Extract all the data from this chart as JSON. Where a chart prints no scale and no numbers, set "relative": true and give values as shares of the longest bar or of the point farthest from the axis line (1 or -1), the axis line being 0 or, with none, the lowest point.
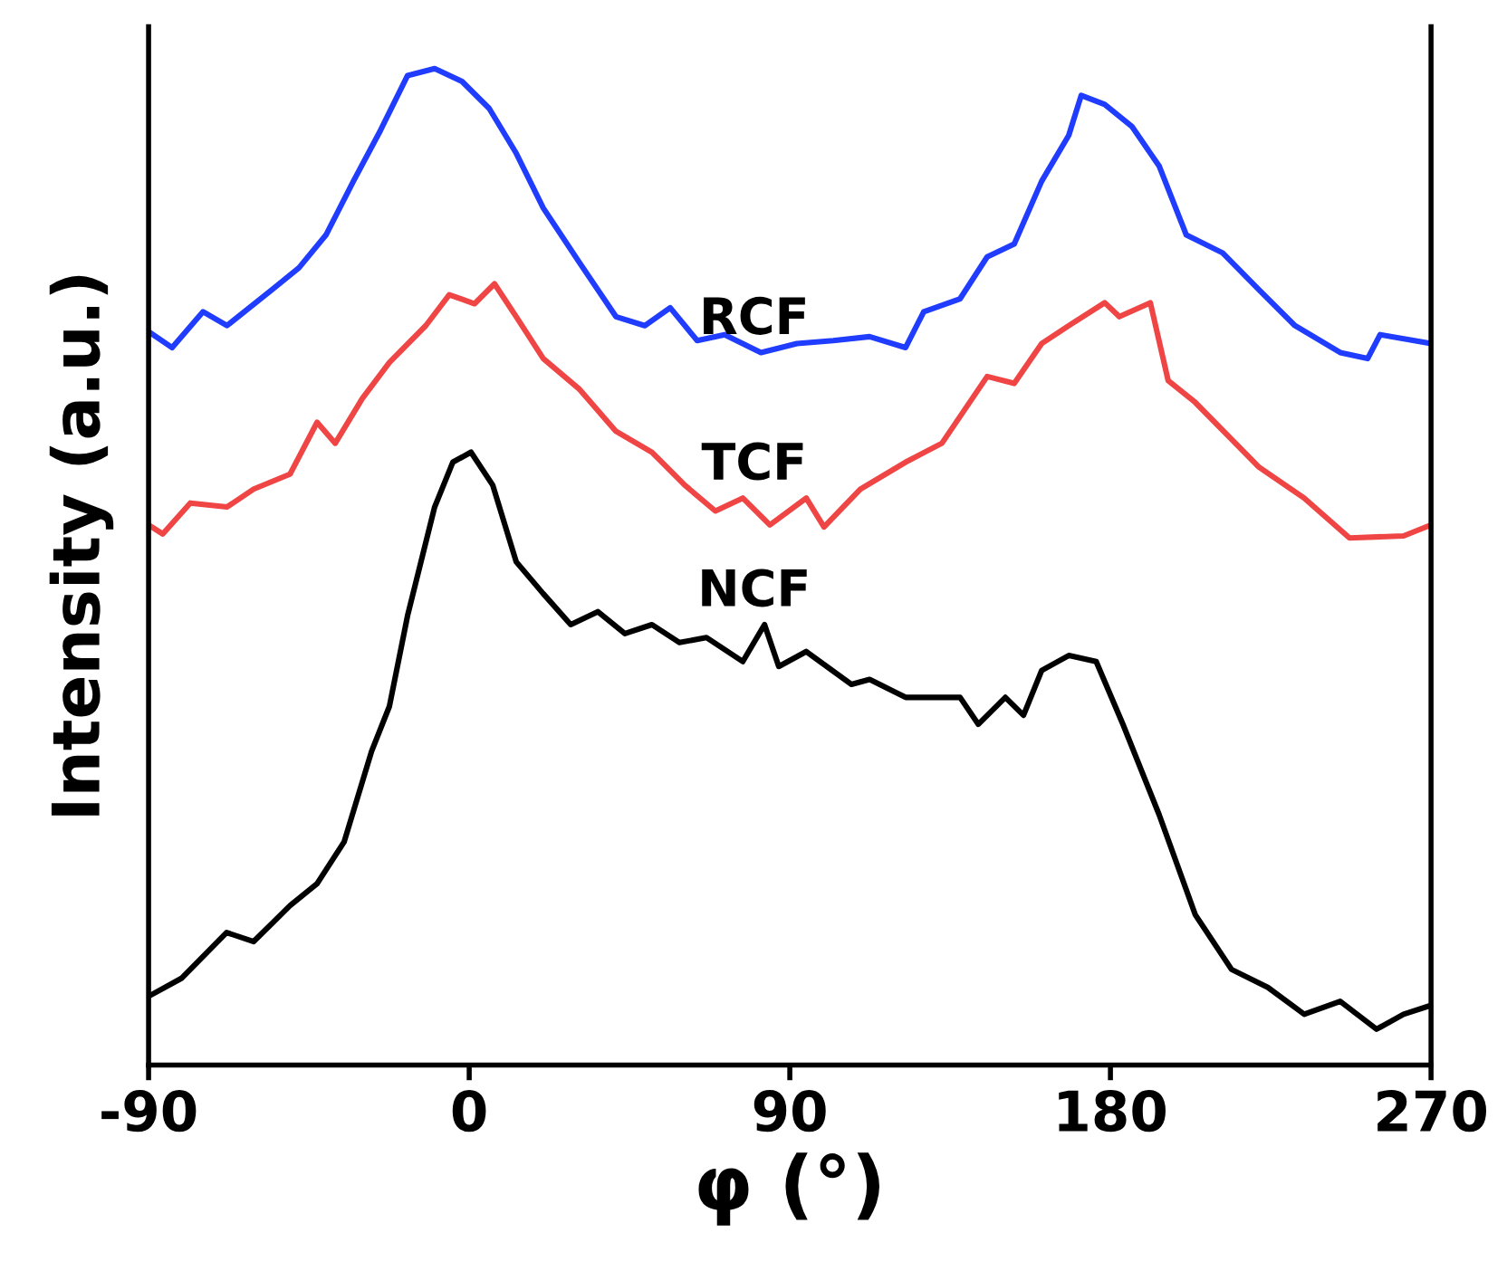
{
  "chart_data": {
    "type": "line",
    "relative": true,
    "xlabel": "φ (°)",
    "ylabel": "Intensity (a.u.)",
    "xlim": [
      -90,
      270
    ],
    "xticks": [
      -90,
      0,
      90,
      180,
      270
    ],
    "tick_labels": "x",
    "grid": false,
    "legend": false,
    "marker": "none",
    "line_style": "solid",
    "series": [
      {
        "name": "RCF",
        "color": "#1f3cff",
        "x": [
          -90,
          -83.4,
          -74.7,
          -68,
          -55.4,
          -47.8,
          -40.2,
          -32.5,
          -24.9,
          -17.3,
          -9.7,
          -2,
          5.6,
          13.2,
          20.8,
          31,
          41.2,
          49.3,
          56.4,
          64,
          71.7,
          81.9,
          92,
          102.2,
          112.4,
          122.5,
          127.6,
          137.8,
          145.4,
          153,
          160.7,
          168.3,
          171.8,
          178.4,
          186,
          193.7,
          201.3,
          211.5,
          221.7,
          231.8,
          244.5,
          252.2,
          255.7,
          270
        ],
        "values": [
          0.736,
          0.72,
          0.756,
          0.742,
          0.778,
          0.8,
          0.833,
          0.887,
          0.938,
          0.993,
          1.0,
          0.987,
          0.96,
          0.915,
          0.86,
          0.805,
          0.751,
          0.742,
          0.76,
          0.727,
          0.733,
          0.715,
          0.724,
          0.727,
          0.731,
          0.72,
          0.756,
          0.769,
          0.811,
          0.824,
          0.887,
          0.933,
          0.973,
          0.964,
          0.942,
          0.902,
          0.833,
          0.815,
          0.778,
          0.742,
          0.715,
          0.709,
          0.733,
          0.724
        ]
      },
      {
        "name": "TCF",
        "color": "#f04545",
        "x": [
          -90,
          -86,
          -78.3,
          -68,
          -60.5,
          -50.3,
          -42.7,
          -37.6,
          -30,
          -22.4,
          -12.2,
          -5.6,
          1.5,
          7.1,
          13.2,
          20.8,
          31,
          41.2,
          51.3,
          60.5,
          69.1,
          76.8,
          84.4,
          94.6,
          99.6,
          109.8,
          122.5,
          132.7,
          145.4,
          153,
          160.7,
          168.3,
          178.4,
          182.5,
          191.2,
          196.2,
          203.8,
          221.7,
          234.4,
          247.1,
          262.3,
          270
        ],
        "values": [
          0.542,
          0.533,
          0.564,
          0.56,
          0.578,
          0.593,
          0.645,
          0.624,
          0.669,
          0.705,
          0.742,
          0.773,
          0.764,
          0.784,
          0.751,
          0.709,
          0.678,
          0.636,
          0.615,
          0.582,
          0.556,
          0.569,
          0.542,
          0.569,
          0.54,
          0.578,
          0.605,
          0.624,
          0.691,
          0.684,
          0.724,
          0.742,
          0.765,
          0.751,
          0.765,
          0.687,
          0.665,
          0.6,
          0.569,
          0.529,
          0.531,
          0.542
        ]
      },
      {
        "name": "NCF",
        "color": "#000000",
        "x": [
          -90,
          -80.8,
          -68.1,
          -60.5,
          -50.3,
          -42.7,
          -35.1,
          -27.4,
          -22.4,
          -17.3,
          -9.7,
          -4.6,
          0.5,
          6.6,
          13.2,
          20.8,
          28.5,
          36.1,
          43.7,
          51.3,
          59,
          66.6,
          76.8,
          82.9,
          86.9,
          94.6,
          107.3,
          112.4,
          122.5,
          137.8,
          142.9,
          150.5,
          155.6,
          160.7,
          168.3,
          176,
          183.5,
          193.7,
          203.8,
          214,
          224.2,
          234.4,
          244.5,
          254.7,
          262.3,
          270
        ],
        "values": [
          0.069,
          0.087,
          0.133,
          0.124,
          0.16,
          0.182,
          0.224,
          0.315,
          0.36,
          0.451,
          0.56,
          0.605,
          0.615,
          0.582,
          0.505,
          0.473,
          0.442,
          0.455,
          0.433,
          0.442,
          0.424,
          0.429,
          0.405,
          0.442,
          0.4,
          0.415,
          0.382,
          0.387,
          0.369,
          0.369,
          0.342,
          0.369,
          0.351,
          0.396,
          0.411,
          0.405,
          0.342,
          0.251,
          0.151,
          0.096,
          0.078,
          0.051,
          0.064,
          0.036,
          0.051,
          0.06
        ]
      }
    ]
  }
}
